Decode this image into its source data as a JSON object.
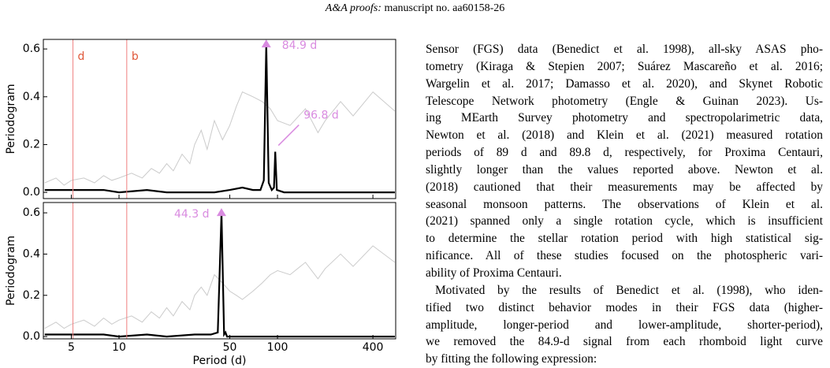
{
  "header": {
    "journal": "A&A proofs:",
    "manuscript": "manuscript no. aa60158-26"
  },
  "chart_data": [
    {
      "type": "line",
      "ylabel": "Periodogram",
      "log_x": true,
      "xlim": [
        3.33,
        557
      ],
      "ylim": [
        -0.026,
        0.64
      ],
      "xticks": [
        5,
        10,
        50,
        100,
        400
      ],
      "yticks": [
        {
          "value": 0,
          "label": "0.0"
        },
        0.2,
        0.4,
        0.6
      ],
      "vlines": [
        {
          "x": 5.12,
          "label": "d",
          "color": "#f08080"
        },
        {
          "x": 11.19,
          "label": "b",
          "color": "#f08080"
        }
      ],
      "annotations": [
        {
          "text": "84.9 d",
          "x": 84.9,
          "color": "#d98be0"
        },
        {
          "text": "96.8 d",
          "x": 96.8,
          "color": "#d98be0"
        }
      ],
      "series": [
        {
          "color": "#a9a9a9",
          "x": [
            3.4,
            4,
            4.5,
            5,
            6,
            7,
            8,
            9,
            10,
            12,
            14,
            16,
            18,
            20,
            22,
            25,
            28,
            30,
            33,
            36,
            40,
            45,
            50,
            55,
            60,
            70,
            80,
            90,
            100,
            120,
            150,
            180,
            200,
            250,
            300,
            400,
            550
          ],
          "values": [
            0.04,
            0.06,
            0.03,
            0.05,
            0.06,
            0.04,
            0.07,
            0.05,
            0.06,
            0.08,
            0.06,
            0.1,
            0.08,
            0.12,
            0.09,
            0.16,
            0.12,
            0.2,
            0.26,
            0.18,
            0.3,
            0.22,
            0.28,
            0.36,
            0.42,
            0.4,
            0.38,
            0.35,
            0.3,
            0.28,
            0.35,
            0.25,
            0.3,
            0.38,
            0.32,
            0.42,
            0.34
          ]
        },
        {
          "color": "#000000",
          "x": [
            3.4,
            5,
            8,
            10,
            15,
            20,
            30,
            40,
            50,
            60,
            70,
            78,
            82,
            84.9,
            88,
            92,
            95,
            96.8,
            99,
            110,
            150,
            200,
            300,
            550
          ],
          "values": [
            0.01,
            0.01,
            0.01,
            0,
            0.01,
            0,
            0,
            0,
            0.01,
            0.02,
            0.01,
            0.01,
            0.05,
            0.62,
            0.04,
            0.01,
            0.02,
            0.17,
            0.01,
            0,
            0,
            0,
            0,
            0
          ]
        }
      ]
    },
    {
      "type": "line",
      "ylabel": "Periodogram",
      "xlabel": "Period (d)",
      "log_x": true,
      "xlim": [
        3.33,
        557
      ],
      "ylim": [
        -0.011,
        0.65
      ],
      "xticks": [
        5,
        10,
        50,
        100,
        400
      ],
      "yticks": [
        {
          "value": 0,
          "label": "0.0"
        },
        0.2,
        0.4,
        0.6
      ],
      "vlines": [
        {
          "x": 5.12,
          "color": "#f08080"
        },
        {
          "x": 11.19,
          "color": "#f08080"
        }
      ],
      "annotations": [
        {
          "text": "44.3 d",
          "x": 44.3,
          "color": "#d98be0"
        }
      ],
      "series": [
        {
          "color": "#a9a9a9",
          "x": [
            3.4,
            4,
            4.5,
            5,
            6,
            7,
            8,
            9,
            10,
            12,
            14,
            16,
            18,
            20,
            22,
            25,
            28,
            30,
            33,
            36,
            40,
            45,
            50,
            55,
            60,
            70,
            80,
            90,
            100,
            120,
            150,
            180,
            200,
            250,
            300,
            400,
            550
          ],
          "values": [
            0.04,
            0.07,
            0.04,
            0.06,
            0.08,
            0.05,
            0.09,
            0.06,
            0.08,
            0.1,
            0.07,
            0.12,
            0.09,
            0.14,
            0.1,
            0.17,
            0.13,
            0.2,
            0.24,
            0.2,
            0.3,
            0.26,
            0.22,
            0.2,
            0.18,
            0.22,
            0.26,
            0.3,
            0.32,
            0.3,
            0.36,
            0.28,
            0.33,
            0.4,
            0.34,
            0.44,
            0.36
          ]
        },
        {
          "color": "#000000",
          "x": [
            3.4,
            5,
            8,
            10,
            15,
            20,
            30,
            38,
            42,
            44.3,
            46,
            47,
            48,
            55,
            70,
            100,
            200,
            550
          ],
          "values": [
            0.01,
            0.01,
            0.01,
            0,
            0.01,
            0,
            0.01,
            0.01,
            0.02,
            0.6,
            0.01,
            0.02,
            0,
            0,
            0,
            0,
            0,
            0
          ]
        }
      ]
    }
  ],
  "text": {
    "paragraphs": [
      {
        "lines": [
          "Sensor (FGS) data (Benedict et al. 1998), all-sky ASAS pho-",
          "tometry (Kiraga & Stepien 2007; Suárez Mascareño et al. 2016;",
          "Wargelin et al. 2017; Damasso et al. 2020), and Skynet Robotic",
          "Telescope Network photometry (Engle & Guinan 2023). Us-",
          "ing MEarth Survey photometry and spectropolarimetric data,",
          "Newton et al. (2018) and Klein et al. (2021) measured rotation",
          "periods of 89 d and 89.8 d, respectively, for Proxima Centauri,",
          "slightly longer than the values reported above. Newton et al.",
          "(2018) cautioned that their measurements may be affected by",
          "seasonal monsoon patterns. The observations of Klein et al.",
          "(2021) spanned only a single rotation cycle, which is insufficient",
          "to determine the stellar rotation period with high statistical sig-",
          "nificance. All of these studies focused on the photospheric vari-",
          "ability of Proxima Centauri."
        ]
      },
      {
        "lines": [
          "Motivated by the results of Benedict et al. (1998), who iden-",
          "tified two distinct behavior modes in their FGS data (higher-",
          "amplitude, longer-period and lower-amplitude, shorter-period),",
          "we removed the 84.9-d signal from each rhomboid light curve",
          "by fitting the following expression:"
        ]
      }
    ]
  }
}
